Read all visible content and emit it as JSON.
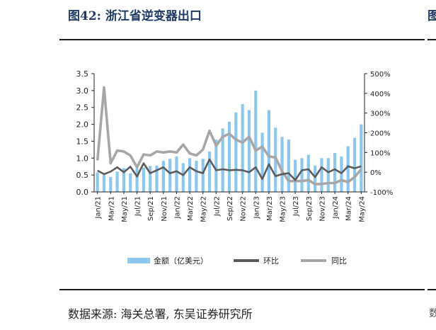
{
  "header": {
    "title": "图42:  浙江省逆变器出口",
    "peek": "图"
  },
  "footer": {
    "source": "数据来源:  海关总署,  东吴证券研究所",
    "peek": "数"
  },
  "colors": {
    "bar": "#8cc8ee",
    "mom": "#5b5b5b",
    "yoy": "#a6a6a6",
    "axis": "#222222"
  },
  "chart_data": {
    "type": "bar",
    "categories": [
      "Jan/21",
      "Feb/21",
      "Mar/21",
      "Apr/21",
      "May/21",
      "Jun/21",
      "Jul/21",
      "Aug/21",
      "Sep/21",
      "Oct/21",
      "Nov/21",
      "Dec/21",
      "Jan/22",
      "Feb/22",
      "Mar/22",
      "Apr/22",
      "May/22",
      "Jun/22",
      "Jul/22",
      "Aug/22",
      "Sep/22",
      "Oct/22",
      "Nov/22",
      "Dec/22",
      "Jan/23",
      "Feb/23",
      "Mar/23",
      "Apr/23",
      "May/23",
      "Jun/23",
      "Jul/23",
      "Aug/23",
      "Sep/23",
      "Oct/23",
      "Nov/23",
      "Dec/23",
      "Jan/24",
      "Feb/24",
      "Mar/24",
      "Apr/24",
      "May/24"
    ],
    "tick_labels": [
      "Jan/21",
      "Mar/21",
      "May/21",
      "Jul/21",
      "Sep/21",
      "Nov/21",
      "Jan/22",
      "Mar/22",
      "May/22",
      "Jul/22",
      "Sep/22",
      "Nov/22",
      "Jan/23",
      "Mar/23",
      "May/23",
      "Jul/23",
      "Sep/23",
      "Nov/23",
      "Jan/24",
      "Mar/24",
      "May/24"
    ],
    "series": [
      {
        "name": "金额（亿美元）",
        "type": "bar",
        "axis": "left",
        "values": [
          0.58,
          0.5,
          0.44,
          0.6,
          0.7,
          0.55,
          0.7,
          0.72,
          0.77,
          0.78,
          0.92,
          0.98,
          1.05,
          0.85,
          1.0,
          0.92,
          0.98,
          1.2,
          1.55,
          1.88,
          2.08,
          2.35,
          2.6,
          2.42,
          3.0,
          1.75,
          2.42,
          1.9,
          1.63,
          1.55,
          0.95,
          1.0,
          1.1,
          0.78,
          1.0,
          1.0,
          1.15,
          1.05,
          1.35,
          1.6,
          2.0
        ]
      },
      {
        "name": "环比",
        "type": "line",
        "axis": "right",
        "values": [
          8,
          -10,
          3,
          25,
          0,
          28,
          -22,
          45,
          -5,
          10,
          25,
          -5,
          5,
          -15,
          25,
          5,
          -5,
          65,
          10,
          15,
          10,
          12,
          10,
          0,
          25,
          -35,
          40,
          -20,
          -10,
          -5,
          -40,
          10,
          15,
          -25,
          25,
          0,
          15,
          -5,
          30,
          20,
          30
        ]
      },
      {
        "name": "同比",
        "type": "line",
        "axis": "right",
        "values": [
          60,
          430,
          45,
          110,
          105,
          85,
          25,
          90,
          85,
          105,
          100,
          105,
          100,
          140,
          95,
          85,
          115,
          210,
          135,
          180,
          195,
          165,
          150,
          180,
          110,
          130,
          80,
          75,
          5,
          -45,
          -45,
          -45,
          -40,
          -60,
          -60,
          -55,
          -55,
          -40,
          -50,
          -25,
          15
        ]
      }
    ],
    "y_left": {
      "min": 0,
      "max": 3.5,
      "ticks": [
        "0.0",
        "0.5",
        "1.0",
        "1.5",
        "2.0",
        "2.5",
        "3.0",
        "3.5"
      ]
    },
    "y_right": {
      "min": -100,
      "max": 500,
      "ticks": [
        "-100%",
        "0%",
        "100%",
        "200%",
        "300%",
        "400%",
        "500%"
      ]
    },
    "legend": {
      "position": "bottom",
      "items": [
        "金额（亿美元）",
        "环比",
        "同比"
      ]
    },
    "grid": false
  }
}
